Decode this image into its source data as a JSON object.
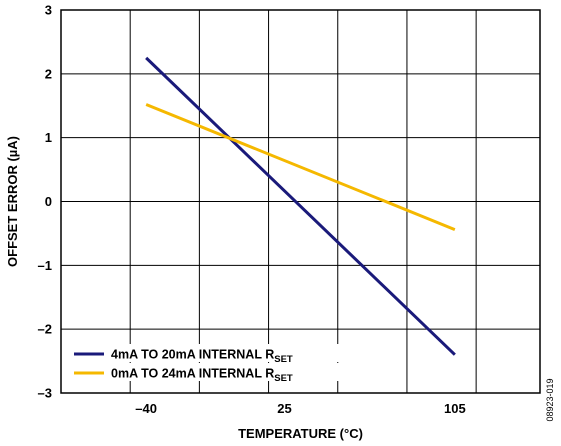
{
  "chart_data": {
    "type": "line",
    "title": "",
    "xlabel": "TEMPERATURE (°C)",
    "ylabel": "OFFSET ERROR (µA)",
    "xlim": [
      -80,
      145
    ],
    "ylim": [
      -3,
      3
    ],
    "x_ticks": [
      -40,
      25,
      105
    ],
    "x_tick_labels": [
      "–40",
      "25",
      "105"
    ],
    "y_ticks": [
      -3,
      -2,
      -1,
      0,
      1,
      2,
      3
    ],
    "y_tick_labels": [
      "–3",
      "–2",
      "–1",
      "0",
      "1",
      "2",
      "3"
    ],
    "grid": true,
    "legend_position": "bottom-left",
    "series": [
      {
        "name": "4mA TO 20mA INTERNAL R",
        "name_sub": "SET",
        "color": "#1a1a7a",
        "x": [
          -40,
          105
        ],
        "y": [
          2.25,
          -2.4
        ]
      },
      {
        "name": "0mA TO 24mA INTERNAL R",
        "name_sub": "SET",
        "color": "#f5b800",
        "x": [
          -40,
          105
        ],
        "y": [
          1.52,
          -0.44
        ]
      }
    ]
  },
  "figure_id": "08923-019"
}
